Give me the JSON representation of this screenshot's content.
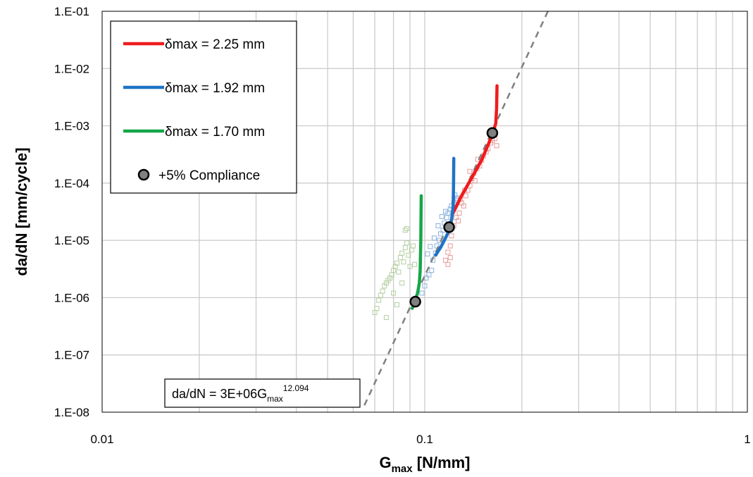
{
  "chart_data": {
    "type": "scatter",
    "title": "",
    "xlabel_main": "G",
    "xlabel_sub": "max",
    "xlabel_unit": " [N/mm]",
    "ylabel": "da/dN [mm/cycle]",
    "x_scale": "log",
    "y_scale": "log",
    "xlim": [
      0.01,
      1
    ],
    "ylim": [
      1e-08,
      0.1
    ],
    "grid": true,
    "x_ticks": [
      {
        "value": 0.01,
        "label": "0.01"
      },
      {
        "value": 0.1,
        "label": "0.1"
      },
      {
        "value": 1,
        "label": "1"
      }
    ],
    "y_ticks": [
      {
        "value": 1e-08,
        "label": "1.E-08"
      },
      {
        "value": 1e-07,
        "label": "1.E-07"
      },
      {
        "value": 1e-06,
        "label": "1.E-06"
      },
      {
        "value": 1e-05,
        "label": "1.E-05"
      },
      {
        "value": 0.0001,
        "label": "1.E-04"
      },
      {
        "value": 0.001,
        "label": "1.E-03"
      },
      {
        "value": 0.01,
        "label": "1.E-02"
      },
      {
        "value": 0.1,
        "label": "1.E-01"
      }
    ],
    "legend_position": "top-left",
    "series": [
      {
        "name": "δmax = 2.25 mm",
        "color": "#ee1c1c",
        "style": "line",
        "points": [
          [
            0.122,
            2.9e-05
          ],
          [
            0.13,
            6e-05
          ],
          [
            0.14,
            0.000125
          ],
          [
            0.15,
            0.00025
          ],
          [
            0.158,
            0.0005
          ],
          [
            0.163,
            0.00078
          ],
          [
            0.166,
            0.0011
          ],
          [
            0.167,
            0.002
          ],
          [
            0.1675,
            0.005
          ]
        ]
      },
      {
        "name": "δmax = 1.92 mm",
        "color": "#1f73c6",
        "style": "line",
        "points": [
          [
            0.108,
            5.5e-06
          ],
          [
            0.112,
            7.5e-06
          ],
          [
            0.116,
            1.1e-05
          ],
          [
            0.119,
            1.5e-05
          ],
          [
            0.121,
            2.2e-05
          ],
          [
            0.1225,
            4e-05
          ],
          [
            0.1228,
            0.0001
          ],
          [
            0.123,
            0.00027
          ]
        ]
      },
      {
        "name": "δmax = 1.70 mm",
        "color": "#16a648",
        "style": "line",
        "points": [
          [
            0.0915,
            6.5e-07
          ],
          [
            0.093,
            8.5e-07
          ],
          [
            0.095,
            1.2e-06
          ],
          [
            0.0962,
            1.8e-06
          ],
          [
            0.0968,
            3e-06
          ],
          [
            0.0972,
            1e-05
          ],
          [
            0.0975,
            6e-05
          ]
        ]
      },
      {
        "name": "+5% Compliance",
        "color": "#808080",
        "style": "marker",
        "points": [
          [
            0.0935,
            8.5e-07
          ],
          [
            0.119,
            1.7e-05
          ],
          [
            0.162,
            0.00075
          ]
        ]
      }
    ],
    "scatter_series": [
      {
        "color": "#e59a9a",
        "points": [
          [
            0.116,
            4.5e-06
          ],
          [
            0.118,
            3.8e-06
          ],
          [
            0.12,
            5e-06
          ],
          [
            0.118,
            6.2e-06
          ],
          [
            0.12,
            8e-06
          ],
          [
            0.121,
            1.2e-05
          ],
          [
            0.123,
            1.8e-05
          ],
          [
            0.125,
            2.5e-05
          ],
          [
            0.128,
            3e-05
          ],
          [
            0.127,
            2.2e-05
          ],
          [
            0.13,
            4.5e-05
          ],
          [
            0.132,
            4e-05
          ],
          [
            0.134,
            6e-05
          ],
          [
            0.136,
            7.5e-05
          ],
          [
            0.138,
            9e-05
          ],
          [
            0.14,
            0.00012
          ],
          [
            0.142,
            0.00015
          ],
          [
            0.143,
            0.00011
          ],
          [
            0.145,
            0.00018
          ],
          [
            0.148,
            0.0002
          ],
          [
            0.15,
            0.00025
          ],
          [
            0.152,
            0.0003
          ],
          [
            0.155,
            0.00035
          ],
          [
            0.157,
            0.0004
          ],
          [
            0.16,
            0.0005
          ],
          [
            0.162,
            0.00055
          ],
          [
            0.165,
            0.0006
          ],
          [
            0.167,
            0.00045
          ],
          [
            0.146,
            0.00026
          ],
          [
            0.138,
            0.00016
          ],
          [
            0.133,
            7.5e-05
          ],
          [
            0.129,
            5.2e-05
          ]
        ]
      },
      {
        "color": "#8ab0de",
        "points": [
          [
            0.098,
            1.2e-06
          ],
          [
            0.1,
            1.6e-06
          ],
          [
            0.101,
            2.2e-06
          ],
          [
            0.103,
            2.5e-06
          ],
          [
            0.105,
            3e-06
          ],
          [
            0.106,
            4.5e-06
          ],
          [
            0.108,
            6e-06
          ],
          [
            0.109,
            8e-06
          ],
          [
            0.111,
            1e-05
          ],
          [
            0.112,
            1.3e-05
          ],
          [
            0.114,
            1.5e-05
          ],
          [
            0.115,
            2e-05
          ],
          [
            0.117,
            2.5e-05
          ],
          [
            0.118,
            3e-05
          ],
          [
            0.12,
            3.5e-05
          ],
          [
            0.121,
            4e-05
          ],
          [
            0.123,
            4.5e-05
          ],
          [
            0.125,
            5e-05
          ],
          [
            0.126,
            5.5e-05
          ],
          [
            0.124,
            6.2e-05
          ],
          [
            0.113,
            2.6e-05
          ],
          [
            0.11,
            1.8e-05
          ],
          [
            0.107,
            1.1e-05
          ],
          [
            0.104,
            7.8e-06
          ],
          [
            0.102,
            5.8e-06
          ],
          [
            0.116,
            3.2e-05
          ]
        ]
      },
      {
        "color": "#b4cfa0",
        "points": [
          [
            0.07,
            5.5e-07
          ],
          [
            0.071,
            6.5e-07
          ],
          [
            0.072,
            9e-07
          ],
          [
            0.073,
            1.1e-06
          ],
          [
            0.074,
            1.3e-06
          ],
          [
            0.075,
            1.6e-06
          ],
          [
            0.076,
            1.8e-06
          ],
          [
            0.077,
            2e-06
          ],
          [
            0.078,
            2.2e-06
          ],
          [
            0.079,
            2.5e-06
          ],
          [
            0.08,
            3e-06
          ],
          [
            0.081,
            3.5e-06
          ],
          [
            0.082,
            4e-06
          ],
          [
            0.083,
            2.8e-06
          ],
          [
            0.084,
            5e-06
          ],
          [
            0.085,
            6e-06
          ],
          [
            0.086,
            4.2e-06
          ],
          [
            0.087,
            7.5e-06
          ],
          [
            0.088,
            9e-06
          ],
          [
            0.089,
            5.5e-06
          ],
          [
            0.09,
            3.5e-06
          ],
          [
            0.091,
            6.8e-06
          ],
          [
            0.092,
            8e-06
          ],
          [
            0.093,
            3.8e-06
          ],
          [
            0.087,
            1.5e-05
          ],
          [
            0.088,
            1.6e-05
          ],
          [
            0.076,
            4.5e-07
          ],
          [
            0.08,
            1.2e-06
          ],
          [
            0.085,
            1.8e-06
          ],
          [
            0.082,
            7.5e-07
          ]
        ]
      }
    ],
    "trendline": {
      "label_main": "da/dN = 3E+06G",
      "label_sub": "max",
      "label_sup": "12.094",
      "coefficient": 3000000,
      "exponent": 12.094,
      "x_range": [
        0.065,
        0.32
      ],
      "color": "#808080",
      "dash": true
    }
  }
}
